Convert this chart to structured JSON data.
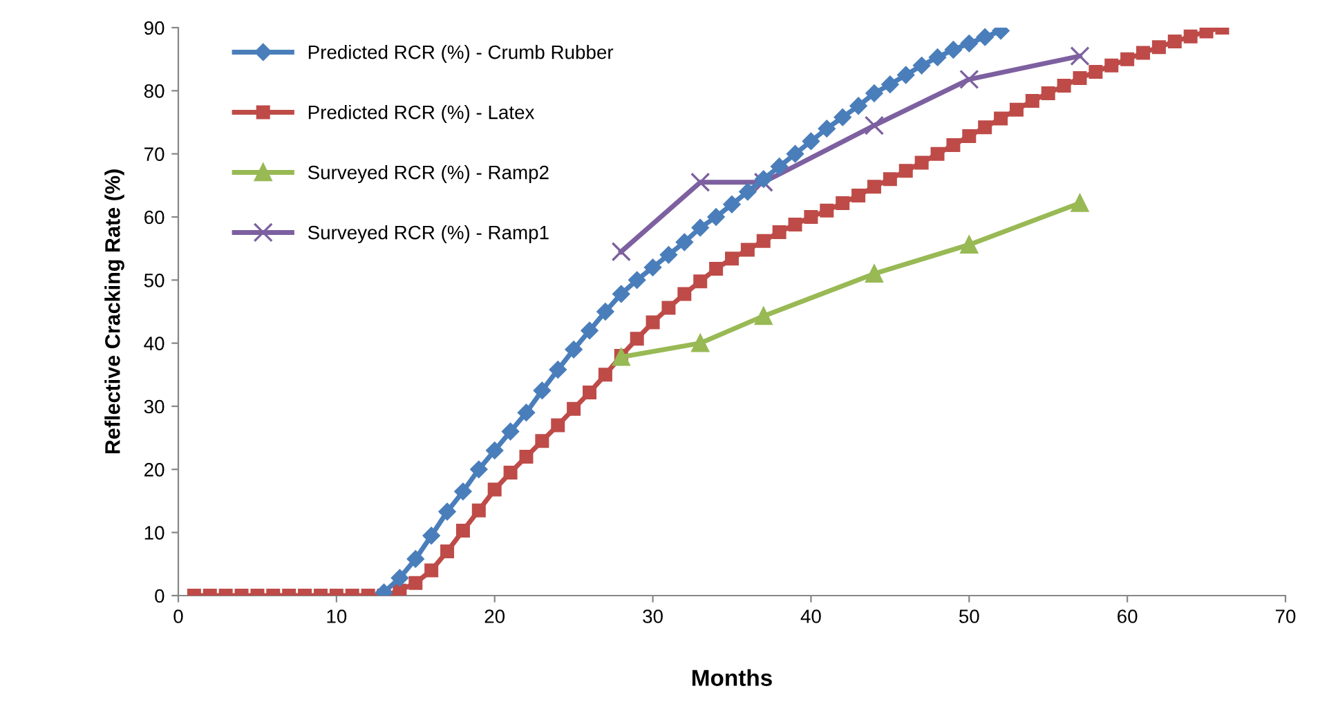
{
  "chart_data": {
    "type": "line",
    "xlabel": "Months",
    "ylabel": "Reflective Cracking Rate (%)",
    "xlim": [
      0,
      70
    ],
    "xticks": [
      0,
      10,
      20,
      30,
      40,
      50,
      60,
      70
    ],
    "ylim": [
      0,
      90
    ],
    "yticks": [
      0,
      10,
      20,
      30,
      40,
      50,
      60,
      70,
      80,
      90
    ],
    "grid": false,
    "legend": "top left",
    "series": [
      {
        "name": "Predicted RCR (%) - Crumb Rubber",
        "color": "#4a7ebb",
        "marker": "diamond",
        "x": [
          13,
          14,
          15,
          16,
          17,
          18,
          19,
          20,
          21,
          22,
          23,
          24,
          25,
          26,
          27,
          28,
          29,
          30,
          31,
          32,
          33,
          34,
          35,
          36,
          37,
          38,
          39,
          40,
          41,
          42,
          43,
          44,
          45,
          46,
          47,
          48,
          49,
          50,
          51,
          52
        ],
        "values": [
          0.5,
          2.8,
          5.8,
          9.5,
          13.3,
          16.5,
          20,
          23,
          26,
          29,
          32.5,
          35.8,
          39,
          42,
          45,
          47.8,
          50,
          52,
          54,
          56,
          58.3,
          60,
          62,
          64,
          66,
          68,
          70,
          72,
          74,
          75.8,
          77.6,
          79.6,
          81,
          82.5,
          84,
          85.3,
          86.5,
          87.5,
          88.5,
          89.5
        ]
      },
      {
        "name": "Predicted RCR (%) - Latex",
        "color": "#be4b48",
        "marker": "square",
        "x": [
          1,
          2,
          3,
          4,
          5,
          6,
          7,
          8,
          9,
          10,
          11,
          12,
          13,
          14,
          15,
          16,
          17,
          18,
          19,
          20,
          21,
          22,
          23,
          24,
          25,
          26,
          27,
          28,
          29,
          30,
          31,
          32,
          33,
          34,
          35,
          36,
          37,
          38,
          39,
          40,
          41,
          42,
          43,
          44,
          45,
          46,
          47,
          48,
          49,
          50,
          51,
          52,
          53,
          54,
          55,
          56,
          57,
          58,
          59,
          60,
          61,
          62,
          63,
          64,
          65,
          66
        ],
        "values": [
          0,
          0,
          0,
          0,
          0,
          0,
          0,
          0,
          0,
          0,
          0,
          0,
          0,
          0.8,
          2,
          4,
          7,
          10.3,
          13.5,
          16.8,
          19.5,
          22,
          24.5,
          27,
          29.6,
          32.2,
          35,
          38,
          40.7,
          43.3,
          45.6,
          47.8,
          49.8,
          51.8,
          53.4,
          54.8,
          56.2,
          57.6,
          58.8,
          60,
          61,
          62.2,
          63.4,
          64.8,
          66,
          67.3,
          68.6,
          70,
          71.4,
          72.8,
          74.2,
          75.6,
          77,
          78.4,
          79.6,
          80.8,
          82,
          83,
          84,
          85,
          86,
          86.9,
          87.8,
          88.6,
          89.4,
          90
        ]
      },
      {
        "name": "Surveyed RCR (%) - Ramp2",
        "color": "#98b954",
        "marker": "triangle",
        "x": [
          28,
          33,
          37,
          44,
          50,
          57
        ],
        "values": [
          37.8,
          40,
          44.3,
          51,
          55.6,
          62.2
        ]
      },
      {
        "name": "Surveyed RCR (%) - Ramp1",
        "color": "#7d60a0",
        "marker": "cross",
        "x": [
          28,
          33,
          37,
          44,
          50,
          57
        ],
        "values": [
          54.5,
          65.5,
          65.5,
          74.5,
          81.8,
          85.5
        ]
      }
    ]
  }
}
